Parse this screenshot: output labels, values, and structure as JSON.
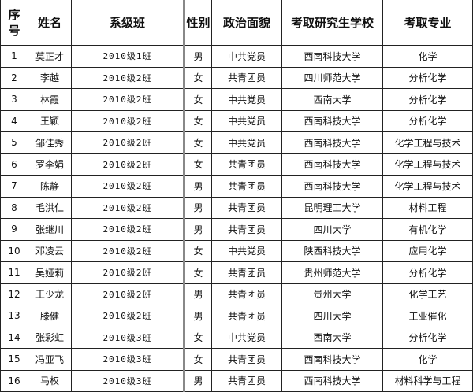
{
  "headers": [
    "序号",
    "姓名",
    "系级班",
    "性别",
    "政治面貌",
    "考取研究生学校",
    "考取专业"
  ],
  "rows": [
    [
      "1",
      "莫正才",
      "2010级1班",
      "男",
      "中共党员",
      "西南科技大学",
      "化学"
    ],
    [
      "2",
      "李越",
      "2010级2班",
      "女",
      "共青团员",
      "四川师范大学",
      "分析化学"
    ],
    [
      "3",
      "林霞",
      "2010级2班",
      "女",
      "中共党员",
      "西南大学",
      "分析化学"
    ],
    [
      "4",
      "王颖",
      "2010级2班",
      "女",
      "中共党员",
      "西南科技大学",
      "分析化学"
    ],
    [
      "5",
      "邹佳秀",
      "2010级2班",
      "女",
      "中共党员",
      "西南科技大学",
      "化学工程与技术"
    ],
    [
      "6",
      "罗李娟",
      "2010级2班",
      "女",
      "共青团员",
      "西南科技大学",
      "化学工程与技术"
    ],
    [
      "7",
      "陈静",
      "2010级2班",
      "男",
      "共青团员",
      "西南科技大学",
      "化学工程与技术"
    ],
    [
      "8",
      "毛洪仁",
      "2010级2班",
      "男",
      "共青团员",
      "昆明理工大学",
      "材料工程"
    ],
    [
      "9",
      "张继川",
      "2010级2班",
      "男",
      "共青团员",
      "四川大学",
      "有机化学"
    ],
    [
      "10",
      "邓凌云",
      "2010级2班",
      "女",
      "中共党员",
      "陕西科技大学",
      "应用化学"
    ],
    [
      "11",
      "吴娅莉",
      "2010级2班",
      "女",
      "共青团员",
      "贵州师范大学",
      "分析化学"
    ],
    [
      "12",
      "王少龙",
      "2010级2班",
      "男",
      "共青团员",
      "贵州大学",
      "化学工艺"
    ],
    [
      "13",
      "滕健",
      "2010级2班",
      "男",
      "共青团员",
      "四川大学",
      "工业催化"
    ],
    [
      "14",
      "张彩虹",
      "2010级3班",
      "女",
      "中共党员",
      "西南大学",
      "分析化学"
    ],
    [
      "15",
      "冯亚飞",
      "2010级3班",
      "女",
      "共青团员",
      "西南科技大学",
      "化学"
    ],
    [
      "16",
      "马权",
      "2010级3班",
      "男",
      "共青团员",
      "西南科技大学",
      "材料科学与工程"
    ]
  ]
}
